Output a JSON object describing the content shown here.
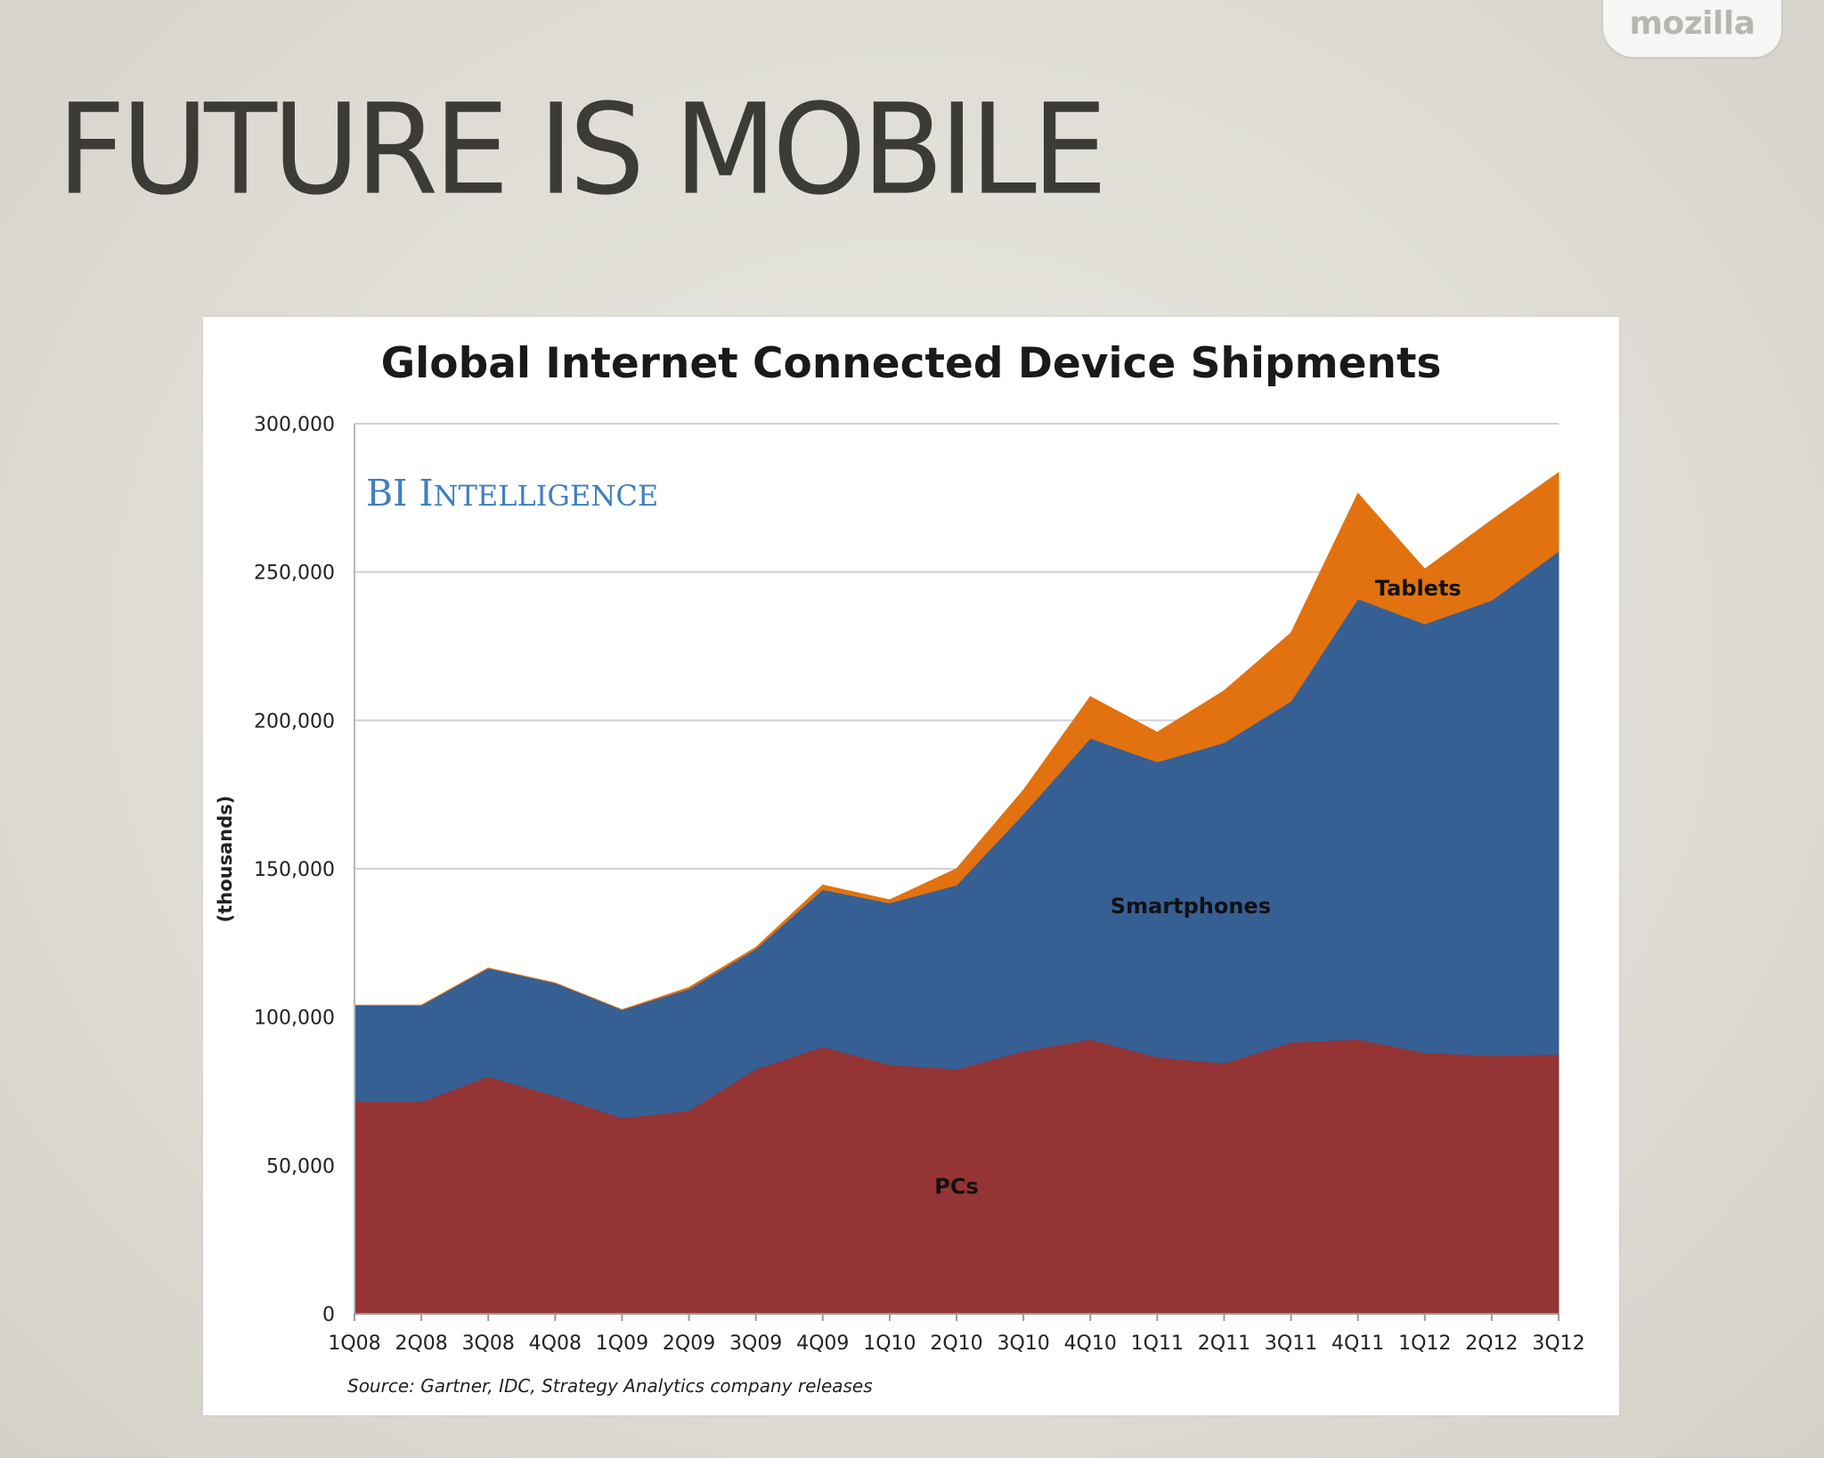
{
  "header": {
    "logo_text": "mozilla",
    "slide_title": "FUTURE IS MOBILE"
  },
  "colors": {
    "pcs": "#943434",
    "smartphones": "#365f94",
    "tablets": "#e2720f",
    "watermark": "#3f7fc0"
  },
  "chart_data": {
    "type": "area",
    "stacked": true,
    "title": "Global Internet Connected Device Shipments",
    "watermark": "BI Intelligence",
    "ylabel": "(thousands)",
    "xlabel": "",
    "ylim": [
      0,
      300000
    ],
    "y_ticks": [
      0,
      50000,
      100000,
      150000,
      200000,
      250000,
      300000
    ],
    "y_tick_labels": [
      "0",
      "50,000",
      "100,000",
      "150,000",
      "200,000",
      "250,000",
      "300,000"
    ],
    "grid": true,
    "categories": [
      "1Q08",
      "2Q08",
      "3Q08",
      "4Q08",
      "1Q09",
      "2Q09",
      "3Q09",
      "4Q09",
      "1Q10",
      "2Q10",
      "3Q10",
      "4Q10",
      "1Q11",
      "2Q11",
      "3Q11",
      "4Q11",
      "1Q12",
      "2Q12",
      "3Q12"
    ],
    "series": [
      {
        "name": "PCs",
        "values": [
          71500,
          71500,
          80000,
          73500,
          66000,
          68500,
          82500,
          90000,
          84000,
          82500,
          88500,
          92500,
          86500,
          84500,
          91500,
          92500,
          88000,
          87000,
          87500
        ]
      },
      {
        "name": "Smartphones",
        "values": [
          32500,
          32500,
          36500,
          38000,
          36500,
          41000,
          40500,
          53000,
          54500,
          62000,
          80000,
          101500,
          99500,
          108000,
          115000,
          148500,
          144500,
          153500,
          169500
        ]
      },
      {
        "name": "Tablets",
        "values": [
          0,
          0,
          0,
          0,
          0,
          500,
          500,
          1500,
          1000,
          5500,
          8000,
          14000,
          10000,
          17500,
          23000,
          35500,
          18500,
          27000,
          26500
        ]
      }
    ],
    "source": "Source: Gartner, IDC, Strategy Analytics company releases"
  }
}
